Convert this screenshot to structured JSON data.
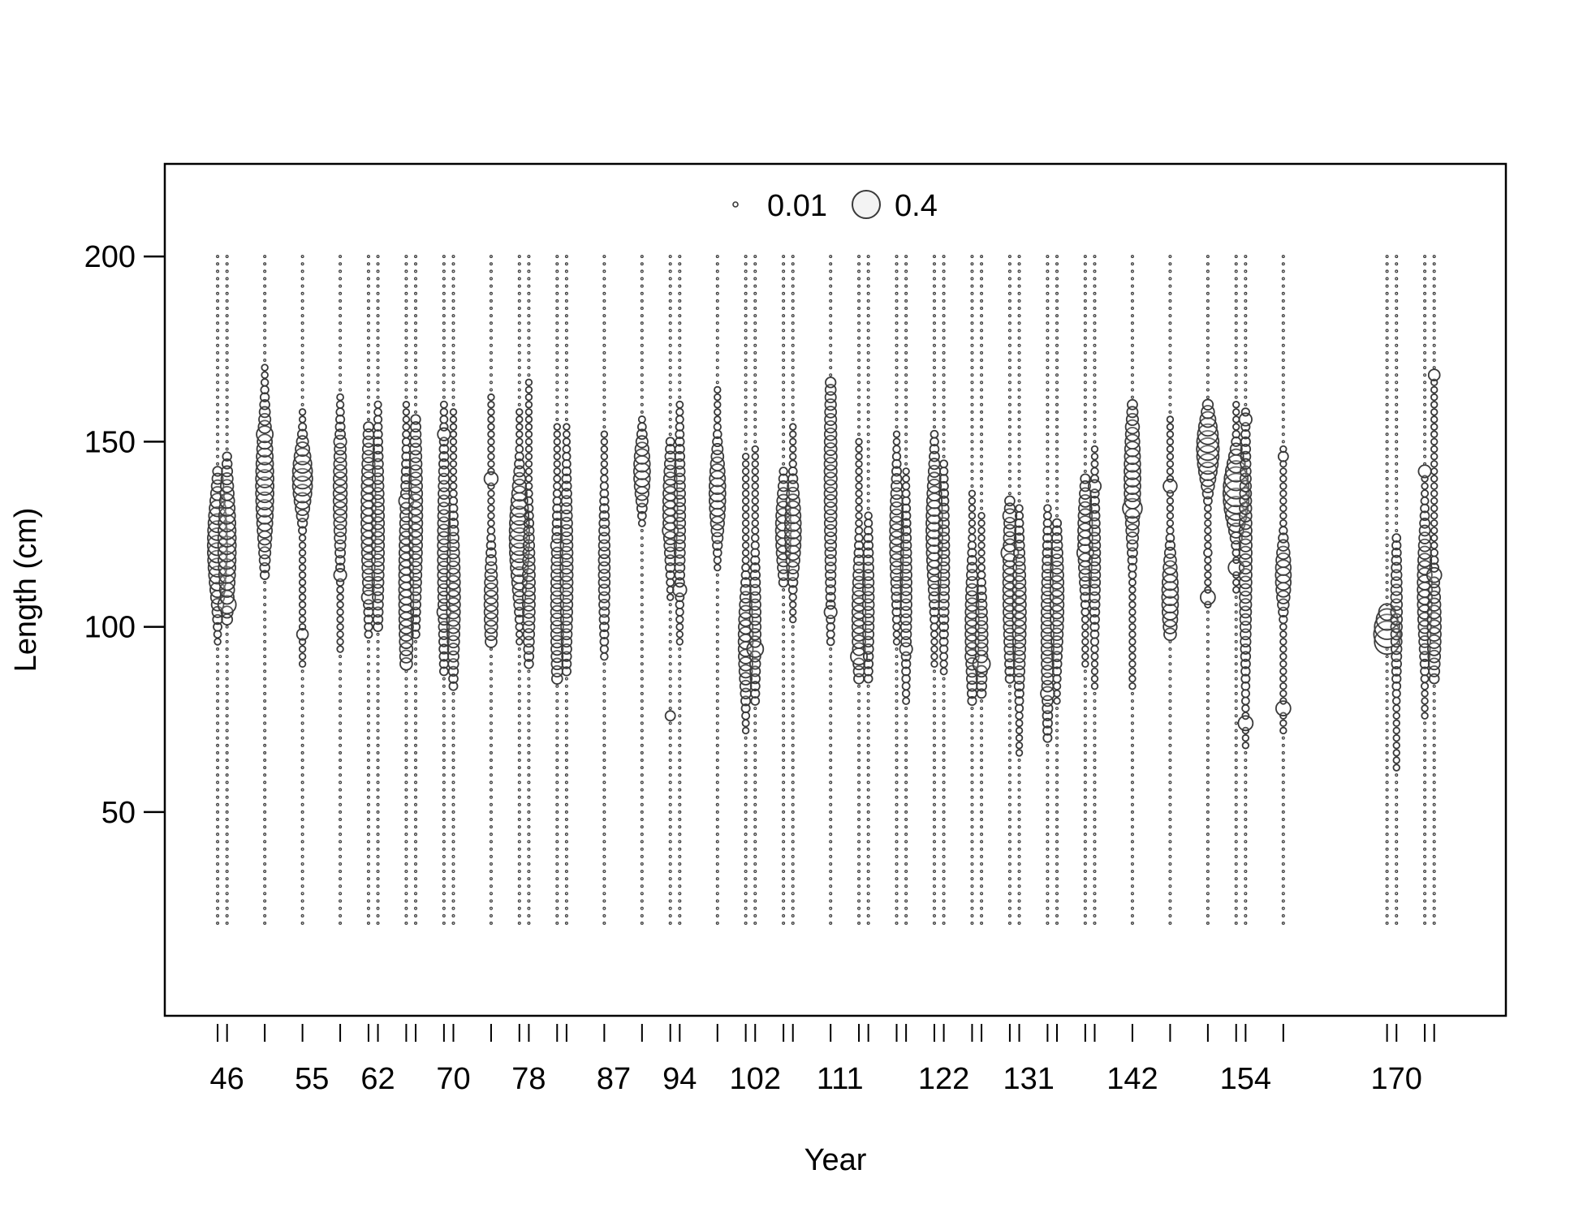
{
  "chart_data": {
    "type": "scatter",
    "subtype": "bubble",
    "xlabel": "Year",
    "ylabel": "Length (cm)",
    "ylim": [
      -5,
      225
    ],
    "xlim": [
      39.4,
      181.6
    ],
    "y_ticks": [
      50,
      100,
      150,
      200
    ],
    "x_tick_labels": [
      46,
      55,
      62,
      70,
      78,
      87,
      94,
      102,
      111,
      122,
      131,
      142,
      154,
      170
    ],
    "x_minor_ticks": [
      45,
      46,
      50,
      54,
      58,
      61,
      62,
      65,
      66,
      69,
      70,
      74,
      77,
      78,
      81,
      82,
      86,
      90,
      93,
      94,
      98,
      101,
      102,
      105,
      106,
      110,
      113,
      114,
      117,
      118,
      121,
      122,
      125,
      126,
      129,
      130,
      133,
      134,
      137,
      138,
      142,
      146,
      150,
      153,
      154,
      158,
      169,
      170,
      173,
      174
    ],
    "legend": {
      "position": "top-center",
      "entries": [
        {
          "label": "0.01",
          "value": 0.01
        },
        {
          "label": "0.4",
          "value": 0.4
        }
      ]
    },
    "length_bins": {
      "min": 20,
      "max": 200,
      "step": 2
    },
    "grid": false,
    "series": [
      {
        "x": 45,
        "peak_length": 122,
        "spread": 10,
        "max_prop": 0.13,
        "min_len": 96,
        "max_len": 142
      },
      {
        "x": 46,
        "peak_length": 122,
        "spread": 12,
        "max_prop": 0.1,
        "min_len": 102,
        "max_len": 146,
        "extra": [
          {
            "length": 106,
            "prop": 0.1
          }
        ]
      },
      {
        "x": 50,
        "peak_length": 138,
        "spread": 12,
        "max_prop": 0.1,
        "min_len": 114,
        "max_len": 170,
        "extra": [
          {
            "length": 152,
            "prop": 0.08
          }
        ]
      },
      {
        "x": 54,
        "peak_length": 140,
        "spread": 6,
        "max_prop": 0.13,
        "min_len": 90,
        "max_len": 158,
        "extra": [
          {
            "length": 98,
            "prop": 0.03
          }
        ]
      },
      {
        "x": 58,
        "peak_length": 136,
        "spread": 12,
        "max_prop": 0.05,
        "min_len": 94,
        "max_len": 162,
        "extra": [
          {
            "length": 114,
            "prop": 0.04
          },
          {
            "length": 150,
            "prop": 0.04
          }
        ]
      },
      {
        "x": 61,
        "peak_length": 130,
        "spread": 16,
        "max_prop": 0.06,
        "min_len": 98,
        "max_len": 154,
        "extra": [
          {
            "length": 108,
            "prop": 0.05
          }
        ]
      },
      {
        "x": 62,
        "peak_length": 125,
        "spread": 18,
        "max_prop": 0.04,
        "min_len": 100,
        "max_len": 160
      },
      {
        "x": 65,
        "peak_length": 110,
        "spread": 20,
        "max_prop": 0.06,
        "min_len": 90,
        "max_len": 160,
        "extra": [
          {
            "length": 134,
            "prop": 0.06
          }
        ]
      },
      {
        "x": 66,
        "peak_length": 130,
        "spread": 18,
        "max_prop": 0.05,
        "min_len": 98,
        "max_len": 156
      },
      {
        "x": 69,
        "peak_length": 120,
        "spread": 20,
        "max_prop": 0.04,
        "min_len": 88,
        "max_len": 160,
        "extra": [
          {
            "length": 104,
            "prop": 0.05
          },
          {
            "length": 152,
            "prop": 0.04
          }
        ]
      },
      {
        "x": 70,
        "peak_length": 108,
        "spread": 14,
        "max_prop": 0.05,
        "min_len": 84,
        "max_len": 158
      },
      {
        "x": 74,
        "peak_length": 106,
        "spread": 10,
        "max_prop": 0.05,
        "min_len": 96,
        "max_len": 162,
        "extra": [
          {
            "length": 140,
            "prop": 0.05
          }
        ]
      },
      {
        "x": 77,
        "peak_length": 124,
        "spread": 10,
        "max_prop": 0.13,
        "min_len": 96,
        "max_len": 158
      },
      {
        "x": 78,
        "peak_length": 110,
        "spread": 14,
        "max_prop": 0.04,
        "min_len": 90,
        "max_len": 166
      },
      {
        "x": 81,
        "peak_length": 104,
        "spread": 18,
        "max_prop": 0.04,
        "min_len": 86,
        "max_len": 154,
        "extra": [
          {
            "length": 122,
            "prop": 0.04
          }
        ]
      },
      {
        "x": 82,
        "peak_length": 115,
        "spread": 18,
        "max_prop": 0.04,
        "min_len": 88,
        "max_len": 154,
        "extra": [
          {
            "length": 95,
            "prop": 0.06
          }
        ]
      },
      {
        "x": 86,
        "peak_length": 116,
        "spread": 14,
        "max_prop": 0.03,
        "min_len": 92,
        "max_len": 152
      },
      {
        "x": 90,
        "peak_length": 142,
        "spread": 6,
        "max_prop": 0.08,
        "min_len": 128,
        "max_len": 156
      },
      {
        "x": 93,
        "peak_length": 132,
        "spread": 10,
        "max_prop": 0.06,
        "min_len": 108,
        "max_len": 150,
        "extra": [
          {
            "length": 126,
            "prop": 0.07
          },
          {
            "length": 76,
            "prop": 0.02
          }
        ]
      },
      {
        "x": 94,
        "peak_length": 130,
        "spread": 16,
        "max_prop": 0.03,
        "min_len": 96,
        "max_len": 160,
        "extra": [
          {
            "length": 110,
            "prop": 0.05
          }
        ]
      },
      {
        "x": 98,
        "peak_length": 136,
        "spread": 8,
        "max_prop": 0.08,
        "min_len": 116,
        "max_len": 164
      },
      {
        "x": 101,
        "peak_length": 96,
        "spread": 10,
        "max_prop": 0.06,
        "min_len": 72,
        "max_len": 146
      },
      {
        "x": 102,
        "peak_length": 100,
        "spread": 14,
        "max_prop": 0.03,
        "min_len": 80,
        "max_len": 148,
        "extra": [
          {
            "length": 94,
            "prop": 0.08
          }
        ]
      },
      {
        "x": 105,
        "peak_length": 126,
        "spread": 8,
        "max_prop": 0.07,
        "min_len": 112,
        "max_len": 142
      },
      {
        "x": 106,
        "peak_length": 126,
        "spread": 8,
        "max_prop": 0.08,
        "min_len": 102,
        "max_len": 154
      },
      {
        "x": 110,
        "peak_length": 140,
        "spread": 24,
        "max_prop": 0.04,
        "min_len": 96,
        "max_len": 166,
        "extra": [
          {
            "length": 146,
            "prop": 0.04
          },
          {
            "length": 104,
            "prop": 0.04
          }
        ]
      },
      {
        "x": 113,
        "peak_length": 102,
        "spread": 12,
        "max_prop": 0.05,
        "min_len": 86,
        "max_len": 150,
        "extra": [
          {
            "length": 92,
            "prop": 0.08
          }
        ]
      },
      {
        "x": 114,
        "peak_length": 106,
        "spread": 14,
        "max_prop": 0.03,
        "min_len": 86,
        "max_len": 130
      },
      {
        "x": 117,
        "peak_length": 124,
        "spread": 12,
        "max_prop": 0.05,
        "min_len": 96,
        "max_len": 152
      },
      {
        "x": 118,
        "peak_length": 110,
        "spread": 16,
        "max_prop": 0.03,
        "min_len": 80,
        "max_len": 142,
        "extra": [
          {
            "length": 94,
            "prop": 0.04
          }
        ]
      },
      {
        "x": 121,
        "peak_length": 126,
        "spread": 12,
        "max_prop": 0.08,
        "min_len": 90,
        "max_len": 152
      },
      {
        "x": 122,
        "peak_length": 118,
        "spread": 16,
        "max_prop": 0.03,
        "min_len": 88,
        "max_len": 144
      },
      {
        "x": 125,
        "peak_length": 100,
        "spread": 12,
        "max_prop": 0.05,
        "min_len": 80,
        "max_len": 136,
        "extra": [
          {
            "length": 92,
            "prop": 0.05
          }
        ]
      },
      {
        "x": 126,
        "peak_length": 96,
        "spread": 10,
        "max_prop": 0.04,
        "min_len": 82,
        "max_len": 130,
        "extra": [
          {
            "length": 90,
            "prop": 0.09
          }
        ]
      },
      {
        "x": 129,
        "peak_length": 112,
        "spread": 16,
        "max_prop": 0.05,
        "min_len": 86,
        "max_len": 134,
        "extra": [
          {
            "length": 120,
            "prop": 0.09
          },
          {
            "length": 130,
            "prop": 0.05
          }
        ]
      },
      {
        "x": 130,
        "peak_length": 104,
        "spread": 14,
        "max_prop": 0.05,
        "min_len": 66,
        "max_len": 132
      },
      {
        "x": 133,
        "peak_length": 98,
        "spread": 18,
        "max_prop": 0.04,
        "min_len": 70,
        "max_len": 132,
        "extra": [
          {
            "length": 82,
            "prop": 0.05
          }
        ]
      },
      {
        "x": 134,
        "peak_length": 108,
        "spread": 12,
        "max_prop": 0.05,
        "min_len": 80,
        "max_len": 128
      },
      {
        "x": 137,
        "peak_length": 124,
        "spread": 10,
        "max_prop": 0.06,
        "min_len": 90,
        "max_len": 140,
        "extra": [
          {
            "length": 120,
            "prop": 0.08
          }
        ]
      },
      {
        "x": 138,
        "peak_length": 118,
        "spread": 14,
        "max_prop": 0.03,
        "min_len": 84,
        "max_len": 148,
        "extra": [
          {
            "length": 138,
            "prop": 0.04
          }
        ]
      },
      {
        "x": 142,
        "peak_length": 140,
        "spread": 12,
        "max_prop": 0.08,
        "min_len": 84,
        "max_len": 160,
        "extra": [
          {
            "length": 132,
            "prop": 0.12
          },
          {
            "length": 154,
            "prop": 0.05
          }
        ]
      },
      {
        "x": 146,
        "peak_length": 108,
        "spread": 8,
        "max_prop": 0.08,
        "min_len": 98,
        "max_len": 156,
        "extra": [
          {
            "length": 138,
            "prop": 0.05
          }
        ]
      },
      {
        "x": 150,
        "peak_length": 148,
        "spread": 6,
        "max_prop": 0.17,
        "min_len": 106,
        "max_len": 160,
        "extra": [
          {
            "length": 108,
            "prop": 0.06
          },
          {
            "length": 120,
            "prop": 0.01
          }
        ]
      },
      {
        "x": 153,
        "peak_length": 136,
        "spread": 6,
        "max_prop": 0.24,
        "min_len": 110,
        "max_len": 160,
        "extra": [
          {
            "length": 116,
            "prop": 0.07
          }
        ]
      },
      {
        "x": 154,
        "peak_length": 120,
        "spread": 22,
        "max_prop": 0.04,
        "min_len": 68,
        "max_len": 158,
        "extra": [
          {
            "length": 74,
            "prop": 0.06
          },
          {
            "length": 156,
            "prop": 0.04
          }
        ]
      },
      {
        "x": 158,
        "peak_length": 114,
        "spread": 6,
        "max_prop": 0.07,
        "min_len": 72,
        "max_len": 148,
        "extra": [
          {
            "length": 78,
            "prop": 0.06
          },
          {
            "length": 146,
            "prop": 0.02
          }
        ]
      },
      {
        "x": 169,
        "peak_length": 98,
        "spread": 4,
        "max_prop": 0.25,
        "min_len": 96,
        "max_len": 104,
        "extra": [
          {
            "length": 104,
            "prop": 0.06
          }
        ]
      },
      {
        "x": 170,
        "peak_length": 104,
        "spread": 14,
        "max_prop": 0.03,
        "min_len": 62,
        "max_len": 124
      },
      {
        "x": 173,
        "peak_length": 110,
        "spread": 12,
        "max_prop": 0.06,
        "min_len": 76,
        "max_len": 142,
        "extra": [
          {
            "length": 142,
            "prop": 0.04
          }
        ]
      },
      {
        "x": 174,
        "peak_length": 100,
        "spread": 10,
        "max_prop": 0.05,
        "min_len": 86,
        "max_len": 168,
        "extra": [
          {
            "length": 114,
            "prop": 0.06
          },
          {
            "length": 168,
            "prop": 0.03
          }
        ]
      }
    ]
  }
}
